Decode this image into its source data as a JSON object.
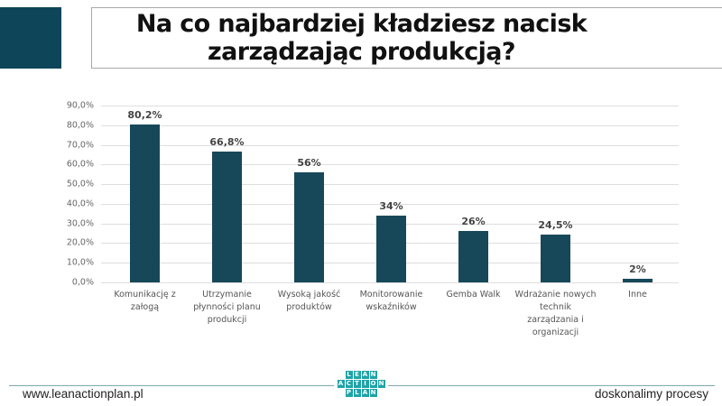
{
  "header": {
    "title_line1": "Na co najbardziej kładziesz nacisk",
    "title_line2": "zarządzając produkcją?",
    "accent_color": "#0f4558"
  },
  "chart_data": {
    "type": "bar",
    "title": "Na co najbardziej kładziesz nacisk zarządzając produkcją?",
    "xlabel": "",
    "ylabel": "",
    "ylim": [
      0,
      90
    ],
    "yticks": [
      "0,0%",
      "10,0%",
      "20,0%",
      "30,0%",
      "40,0%",
      "50,0%",
      "60,0%",
      "70,0%",
      "80,0%",
      "90,0%"
    ],
    "grid": true,
    "legend": null,
    "bar_color": "#17485a",
    "categories": [
      "Komunikację z załogą",
      "Utrzymanie płynności planu produkcji",
      "Wysoką jakość produktów",
      "Monitorowanie wskaźników",
      "Gemba Walk",
      "Wdrażanie nowych technik zarządzania i organizacji",
      "Inne"
    ],
    "values": [
      80.2,
      66.8,
      56,
      34,
      26,
      24.5,
      2
    ],
    "data_labels": [
      "80,2%",
      "66,8%",
      "56%",
      "34%",
      "26%",
      "24,5%",
      "2%"
    ],
    "category_label_lines": [
      [
        "Komunikację z",
        "załogą"
      ],
      [
        "Utrzymanie",
        "płynności planu",
        "produkcji"
      ],
      [
        "Wysoką jakość",
        "produktów"
      ],
      [
        "Monitorowanie",
        "wskaźników"
      ],
      [
        "Gemba Walk"
      ],
      [
        "Wdrażanie nowych",
        "technik",
        "zarządzania i",
        "organizacji"
      ],
      [
        "Inne"
      ]
    ]
  },
  "footer": {
    "url": "www.leanactionplan.pl",
    "tagline": "doskonalimy procesy",
    "logo": {
      "rows": [
        [
          "L",
          "E",
          "A",
          "N"
        ],
        [
          "A",
          "C",
          "T",
          "I",
          "O",
          "N"
        ],
        [
          "P",
          "L",
          "A",
          "N"
        ]
      ],
      "color": "#1fa3a6"
    }
  }
}
